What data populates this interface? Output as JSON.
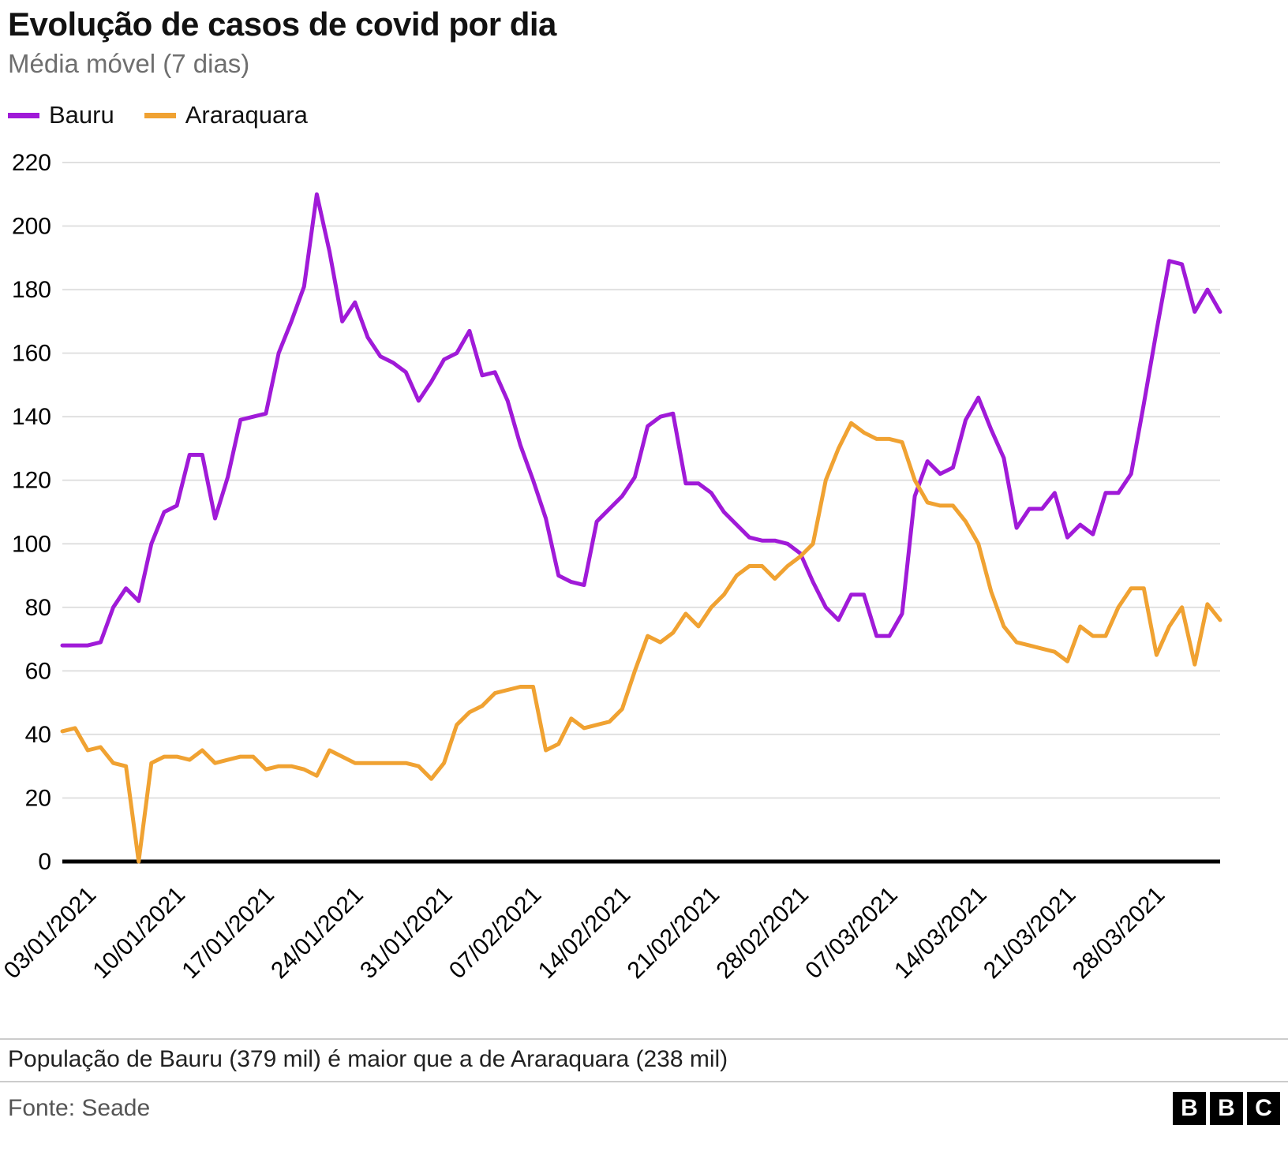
{
  "header": {
    "title": "Evolução de casos de covid por dia",
    "subtitle": "Média móvel (7 dias)"
  },
  "legend": [
    {
      "label": "Bauru",
      "color": "#a01ad8"
    },
    {
      "label": "Araraquara",
      "color": "#f0a232"
    }
  ],
  "chart_data": {
    "type": "line",
    "title": "Evolução de casos de covid por dia",
    "subtitle": "Média móvel (7 dias)",
    "xlabel": "",
    "ylabel": "",
    "ylim": [
      0,
      220
    ],
    "y_ticks": [
      0,
      20,
      40,
      60,
      80,
      100,
      120,
      140,
      160,
      180,
      200,
      220
    ],
    "grid": true,
    "legend_position": "top-left",
    "x_tick_labels": [
      "03/01/2021",
      "10/01/2021",
      "17/01/2021",
      "24/01/2021",
      "31/01/2021",
      "07/02/2021",
      "14/02/2021",
      "21/02/2021",
      "28/02/2021",
      "07/03/2021",
      "14/03/2021",
      "21/03/2021",
      "28/03/2021"
    ],
    "x_tick_indices": [
      2,
      9,
      16,
      23,
      30,
      37,
      44,
      51,
      58,
      65,
      72,
      79,
      86
    ],
    "x_note": "daily points, 7-day cadence between labelled ticks",
    "series": [
      {
        "name": "Bauru",
        "color": "#a01ad8",
        "values": [
          68,
          68,
          68,
          69,
          80,
          86,
          82,
          100,
          110,
          112,
          128,
          128,
          108,
          121,
          139,
          140,
          141,
          160,
          170,
          181,
          210,
          192,
          170,
          176,
          165,
          159,
          157,
          154,
          145,
          151,
          158,
          160,
          167,
          153,
          154,
          145,
          131,
          120,
          108,
          90,
          88,
          87,
          107,
          111,
          115,
          121,
          137,
          140,
          141,
          119,
          119,
          116,
          110,
          106,
          102,
          101,
          101,
          100,
          97,
          88,
          80,
          76,
          84,
          84,
          71,
          71,
          78,
          115,
          126,
          122,
          124,
          139,
          146,
          136,
          127,
          105,
          111,
          111,
          116,
          102,
          106,
          103,
          116,
          116,
          122,
          144,
          167,
          189,
          188,
          173,
          180,
          173
        ]
      },
      {
        "name": "Araraquara",
        "color": "#f0a232",
        "values": [
          41,
          42,
          35,
          36,
          31,
          30,
          0,
          31,
          33,
          33,
          32,
          35,
          31,
          32,
          33,
          33,
          29,
          30,
          30,
          29,
          27,
          35,
          33,
          31,
          31,
          31,
          31,
          31,
          30,
          26,
          31,
          43,
          47,
          49,
          53,
          54,
          55,
          55,
          35,
          37,
          45,
          42,
          43,
          44,
          48,
          60,
          71,
          69,
          72,
          78,
          74,
          80,
          84,
          90,
          93,
          93,
          89,
          93,
          96,
          100,
          120,
          130,
          138,
          135,
          133,
          133,
          132,
          120,
          113,
          112,
          112,
          107,
          100,
          85,
          74,
          69,
          68,
          67,
          66,
          63,
          74,
          71,
          71,
          80,
          86,
          86,
          65,
          74,
          80,
          62,
          81,
          76
        ]
      }
    ],
    "axis_color": "#000000",
    "grid_color": "#e0e0e0"
  },
  "footnote": "População de Bauru (379 mil) é maior que a de Araraquara (238 mil)",
  "source": "Fonte: Seade",
  "logo": {
    "letters": [
      "B",
      "B",
      "C"
    ]
  }
}
